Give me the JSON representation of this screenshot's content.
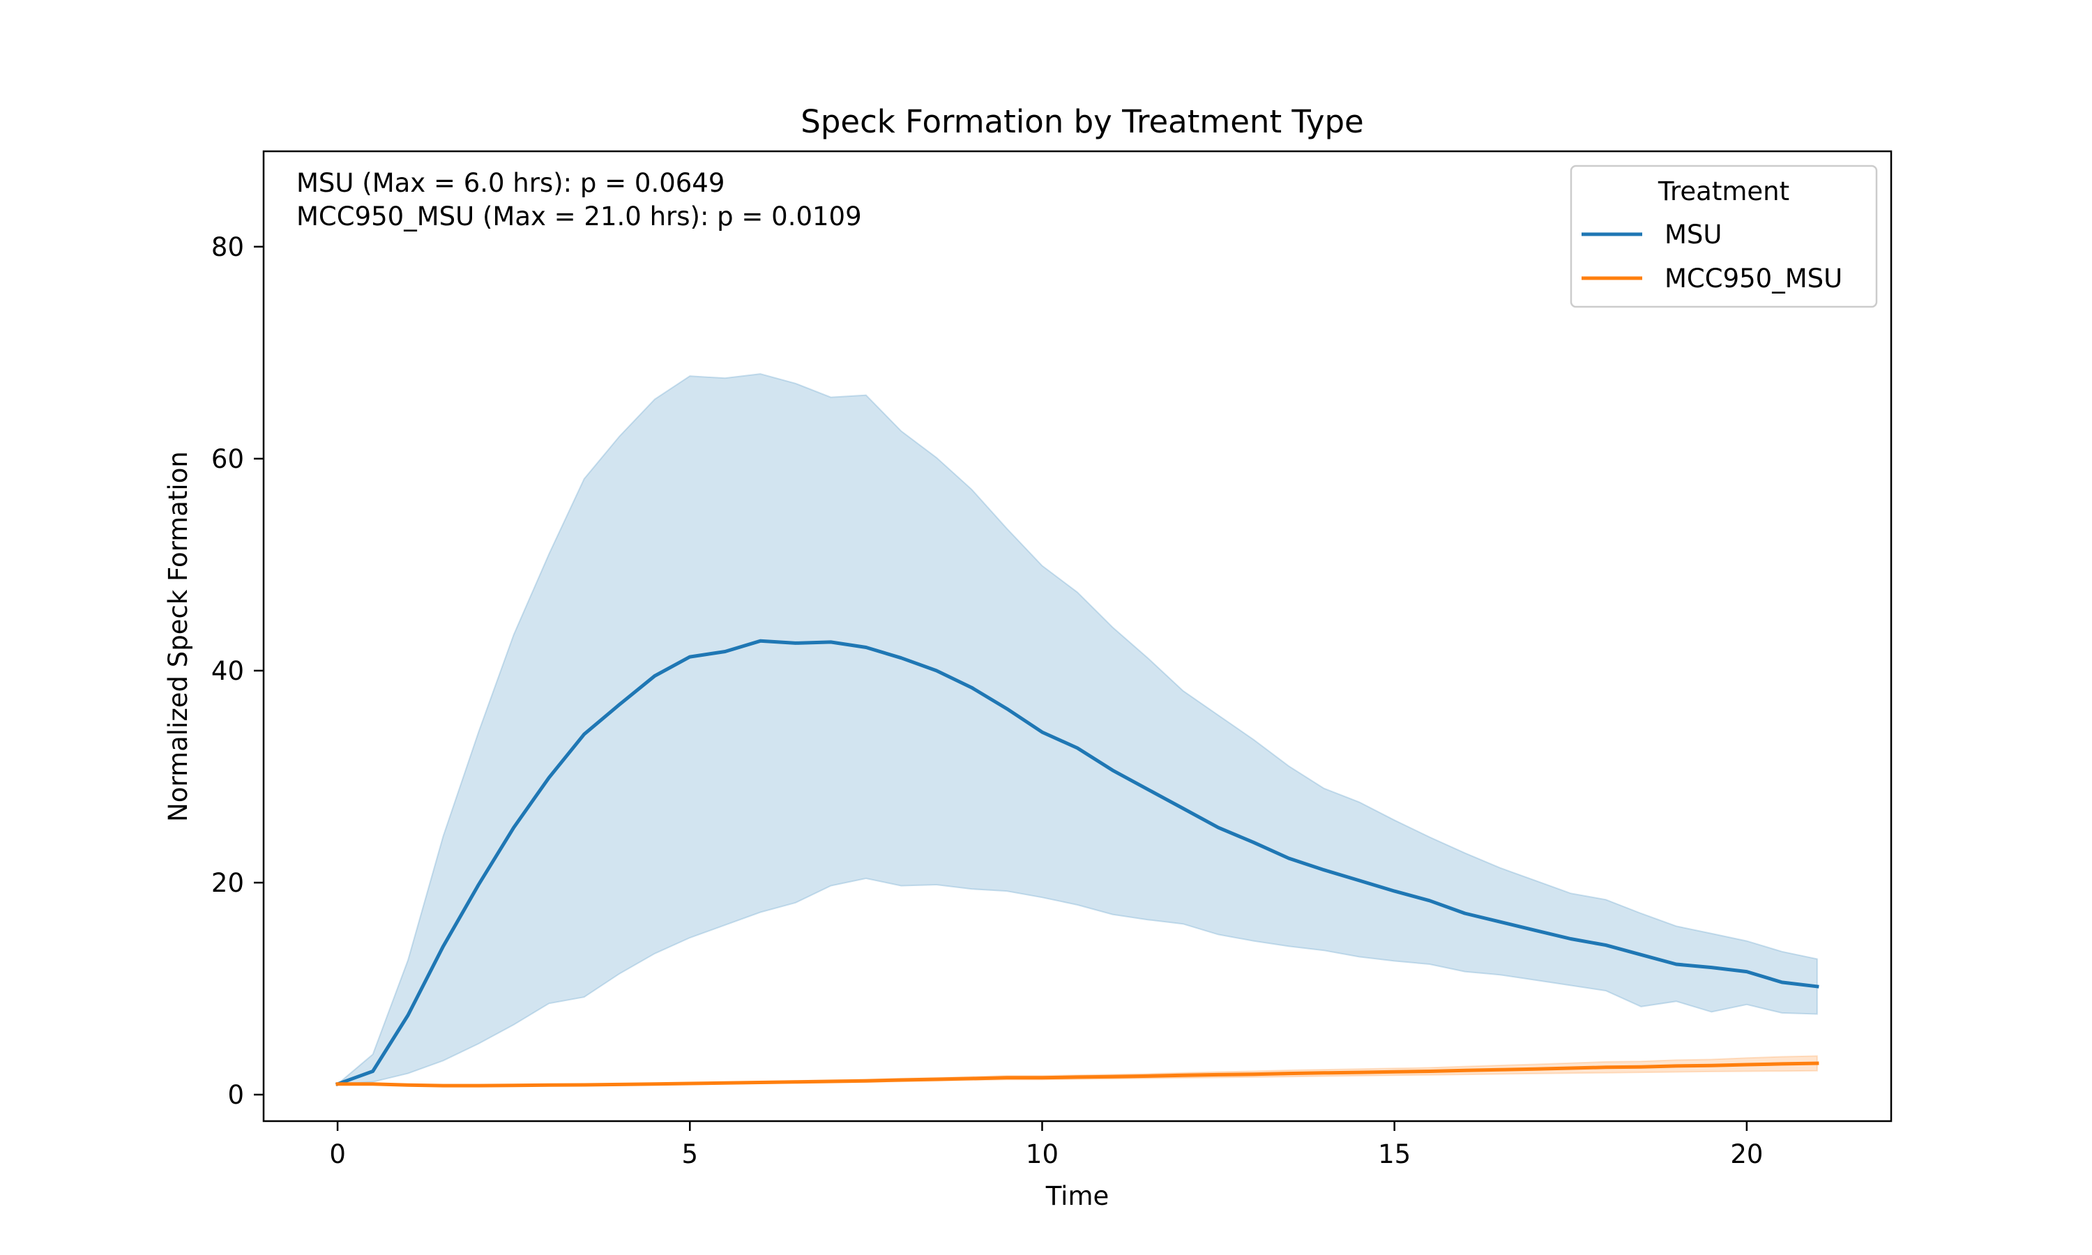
{
  "chart_data": {
    "type": "line",
    "title": "Speck Formation by Treatment Type",
    "xlabel": "Time",
    "ylabel": "Normalized Speck Formation",
    "xlim": [
      -1.05,
      22.05
    ],
    "ylim": [
      -2.5,
      89
    ],
    "xticks": [
      0,
      5,
      10,
      15,
      20
    ],
    "yticks": [
      0,
      20,
      40,
      60,
      80
    ],
    "grid": false,
    "legend": {
      "title": "Treatment",
      "placement": "top-right"
    },
    "annotations": [
      "MSU (Max = 6.0 hrs): p = 0.0649",
      "MCC950_MSU (Max = 21.0 hrs): p = 0.0109"
    ],
    "x": [
      0,
      0.5,
      1,
      1.5,
      2,
      2.5,
      3,
      3.5,
      4,
      4.5,
      5,
      5.5,
      6,
      6.5,
      7,
      7.5,
      8,
      8.5,
      9,
      9.5,
      10,
      10.5,
      11,
      11.5,
      12,
      12.5,
      13,
      13.5,
      14,
      14.5,
      15,
      15.5,
      16,
      16.5,
      17,
      17.5,
      18,
      18.5,
      19,
      19.5,
      20,
      20.5,
      21
    ],
    "series": [
      {
        "name": "MSU",
        "color": "#1f77b4",
        "values": [
          1.0,
          2.2,
          7.5,
          14.0,
          19.8,
          25.2,
          29.9,
          34.0,
          36.8,
          39.5,
          41.3,
          41.8,
          42.8,
          42.6,
          42.7,
          42.2,
          41.2,
          40.0,
          38.4,
          36.4,
          34.2,
          32.7,
          30.6,
          28.8,
          27.0,
          25.2,
          23.8,
          22.3,
          21.2,
          20.2,
          19.2,
          18.3,
          17.1,
          16.3,
          15.5,
          14.7,
          14.1,
          13.2,
          12.3,
          12.0,
          11.6,
          10.6,
          10.2
        ],
        "ci_lower": [
          1.0,
          1.2,
          2.0,
          3.2,
          4.8,
          6.6,
          8.6,
          9.2,
          11.4,
          13.3,
          14.8,
          16.0,
          17.2,
          18.1,
          19.7,
          20.4,
          19.7,
          19.8,
          19.4,
          19.2,
          18.6,
          17.9,
          17.0,
          16.5,
          16.1,
          15.1,
          14.5,
          14.0,
          13.6,
          13.0,
          12.6,
          12.3,
          11.6,
          11.3,
          10.8,
          10.3,
          9.8,
          8.3,
          8.8,
          7.8,
          8.5,
          7.7,
          7.6
        ],
        "ci_upper": [
          1.0,
          3.8,
          12.7,
          24.4,
          34.2,
          43.4,
          51.0,
          58.1,
          62.1,
          65.6,
          67.8,
          67.6,
          68.0,
          67.1,
          65.8,
          66.0,
          62.6,
          60.1,
          57.1,
          53.4,
          49.9,
          47.4,
          44.1,
          41.2,
          38.1,
          35.8,
          33.5,
          31.0,
          28.9,
          27.6,
          25.9,
          24.3,
          22.8,
          21.4,
          20.2,
          19.0,
          18.4,
          17.1,
          15.9,
          15.2,
          14.5,
          13.5,
          12.8
        ]
      },
      {
        "name": "MCC950_MSU",
        "color": "#ff7f0e",
        "values": [
          1.0,
          1.0,
          0.9,
          0.85,
          0.85,
          0.87,
          0.9,
          0.92,
          0.96,
          1.0,
          1.05,
          1.1,
          1.15,
          1.2,
          1.25,
          1.3,
          1.38,
          1.45,
          1.52,
          1.6,
          1.6,
          1.65,
          1.7,
          1.75,
          1.82,
          1.88,
          1.93,
          2.0,
          2.05,
          2.1,
          2.15,
          2.2,
          2.28,
          2.35,
          2.42,
          2.5,
          2.58,
          2.62,
          2.7,
          2.75,
          2.83,
          2.9,
          2.95
        ],
        "ci_lower": [
          1.0,
          0.95,
          0.85,
          0.8,
          0.8,
          0.82,
          0.84,
          0.86,
          0.9,
          0.94,
          0.98,
          1.02,
          1.06,
          1.1,
          1.14,
          1.18,
          1.24,
          1.3,
          1.36,
          1.42,
          1.42,
          1.46,
          1.5,
          1.54,
          1.58,
          1.62,
          1.66,
          1.7,
          1.74,
          1.78,
          1.82,
          1.86,
          1.9,
          1.94,
          1.98,
          2.02,
          2.06,
          2.1,
          2.14,
          2.18,
          2.2,
          2.22,
          2.25
        ],
        "ci_upper": [
          1.0,
          1.05,
          0.95,
          0.9,
          0.9,
          0.92,
          0.96,
          0.98,
          1.02,
          1.06,
          1.12,
          1.18,
          1.24,
          1.3,
          1.36,
          1.42,
          1.52,
          1.6,
          1.68,
          1.78,
          1.78,
          1.84,
          1.9,
          1.96,
          2.06,
          2.14,
          2.2,
          2.3,
          2.36,
          2.42,
          2.48,
          2.54,
          2.66,
          2.76,
          2.86,
          2.98,
          3.1,
          3.14,
          3.26,
          3.32,
          3.46,
          3.58,
          3.65
        ]
      }
    ]
  }
}
